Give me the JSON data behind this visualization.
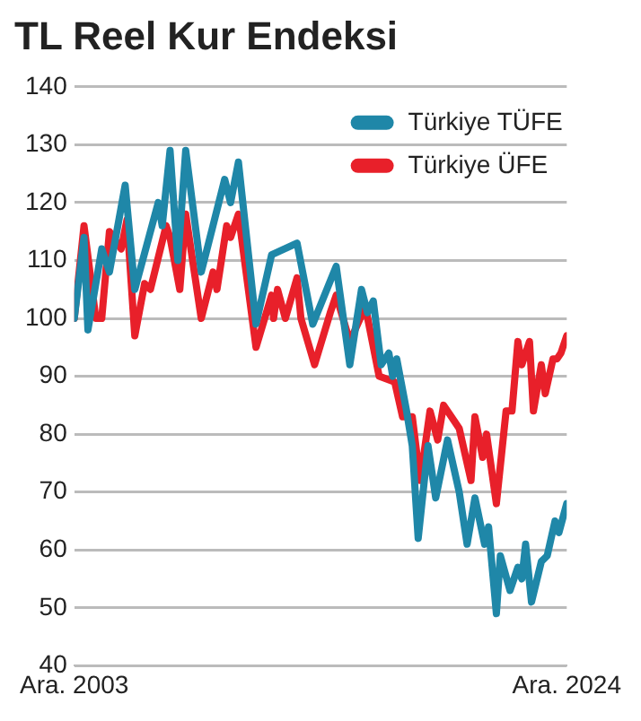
{
  "chart_data": {
    "type": "line",
    "title": "TL Reel Kur Endeksi",
    "xlim": [
      "2003-12",
      "2024-12"
    ],
    "xticks": [
      {
        "value": "2003-12",
        "label": "Ara. 2003"
      },
      {
        "value": "2024-12",
        "label": "Ara. 2024"
      }
    ],
    "ylim": [
      40,
      140
    ],
    "yticks": [
      40,
      50,
      60,
      70,
      80,
      90,
      100,
      110,
      120,
      130,
      140
    ],
    "grid": "y",
    "legend": "top right",
    "marker": "none",
    "line_style": "solid",
    "series": [
      {
        "name": "Türkiye TÜFE",
        "color": "#1f87a8",
        "x": [
          "2003-12",
          "2004-05",
          "2004-07",
          "2005-02",
          "2005-06",
          "2006-02",
          "2006-07",
          "2007-07",
          "2007-09",
          "2008-01",
          "2008-05",
          "2008-09",
          "2009-05",
          "2010-05",
          "2010-08",
          "2010-12",
          "2011-09",
          "2012-05",
          "2013-06",
          "2014-02",
          "2015-02",
          "2015-09",
          "2016-03",
          "2016-06",
          "2016-09",
          "2017-01",
          "2017-05",
          "2017-07",
          "2017-09",
          "2018-02",
          "2018-05",
          "2018-08",
          "2019-01",
          "2019-05",
          "2019-11",
          "2020-05",
          "2020-09",
          "2021-01",
          "2021-06",
          "2021-08",
          "2021-12",
          "2022-02",
          "2022-07",
          "2022-11",
          "2023-01",
          "2023-03",
          "2023-06",
          "2023-11",
          "2024-02",
          "2024-06",
          "2024-08",
          "2024-12"
        ],
        "values": [
          100,
          114,
          98,
          112,
          108,
          123,
          105,
          120,
          116,
          129,
          110,
          129,
          108,
          124,
          120,
          127,
          99,
          111,
          113,
          99,
          109,
          92,
          105,
          101,
          103,
          92,
          94,
          90,
          93,
          84,
          78,
          62,
          78,
          69,
          79,
          70,
          61,
          69,
          61,
          64,
          49,
          59,
          53,
          57,
          55,
          61,
          51,
          58,
          59,
          65,
          63,
          68
        ]
      },
      {
        "name": "Türkiye ÜFE",
        "color": "#e8202a",
        "x": [
          "2003-12",
          "2004-05",
          "2004-11",
          "2005-02",
          "2005-06",
          "2005-12",
          "2006-03",
          "2006-07",
          "2006-12",
          "2007-03",
          "2007-11",
          "2008-01",
          "2008-06",
          "2008-09",
          "2009-05",
          "2009-11",
          "2010-01",
          "2010-06",
          "2010-08",
          "2010-12",
          "2011-09",
          "2012-05",
          "2012-06",
          "2012-08",
          "2012-12",
          "2013-06",
          "2013-08",
          "2014-03",
          "2014-11",
          "2015-02",
          "2015-09",
          "2016-05",
          "2016-12",
          "2017-08",
          "2017-12",
          "2018-05",
          "2018-09",
          "2019-02",
          "2019-06",
          "2019-09",
          "2020-05",
          "2020-11",
          "2021-01",
          "2021-05",
          "2021-07",
          "2021-12",
          "2022-05",
          "2022-08",
          "2022-11",
          "2023-01",
          "2023-05",
          "2023-07",
          "2023-11",
          "2024-01",
          "2024-05",
          "2024-07",
          "2024-09",
          "2024-12"
        ],
        "values": [
          100,
          116,
          100,
          100,
          115,
          112,
          117,
          97,
          106,
          105,
          116,
          114,
          105,
          118,
          100,
          108,
          105,
          116,
          114,
          118,
          95,
          104,
          100,
          105,
          100,
          107,
          100,
          92,
          101,
          104,
          96,
          102,
          90,
          89,
          83,
          83,
          72,
          84,
          79,
          85,
          81,
          72,
          83,
          76,
          80,
          68,
          84,
          84,
          96,
          92,
          96,
          84,
          92,
          87,
          93,
          93,
          94,
          97
        ]
      }
    ]
  }
}
